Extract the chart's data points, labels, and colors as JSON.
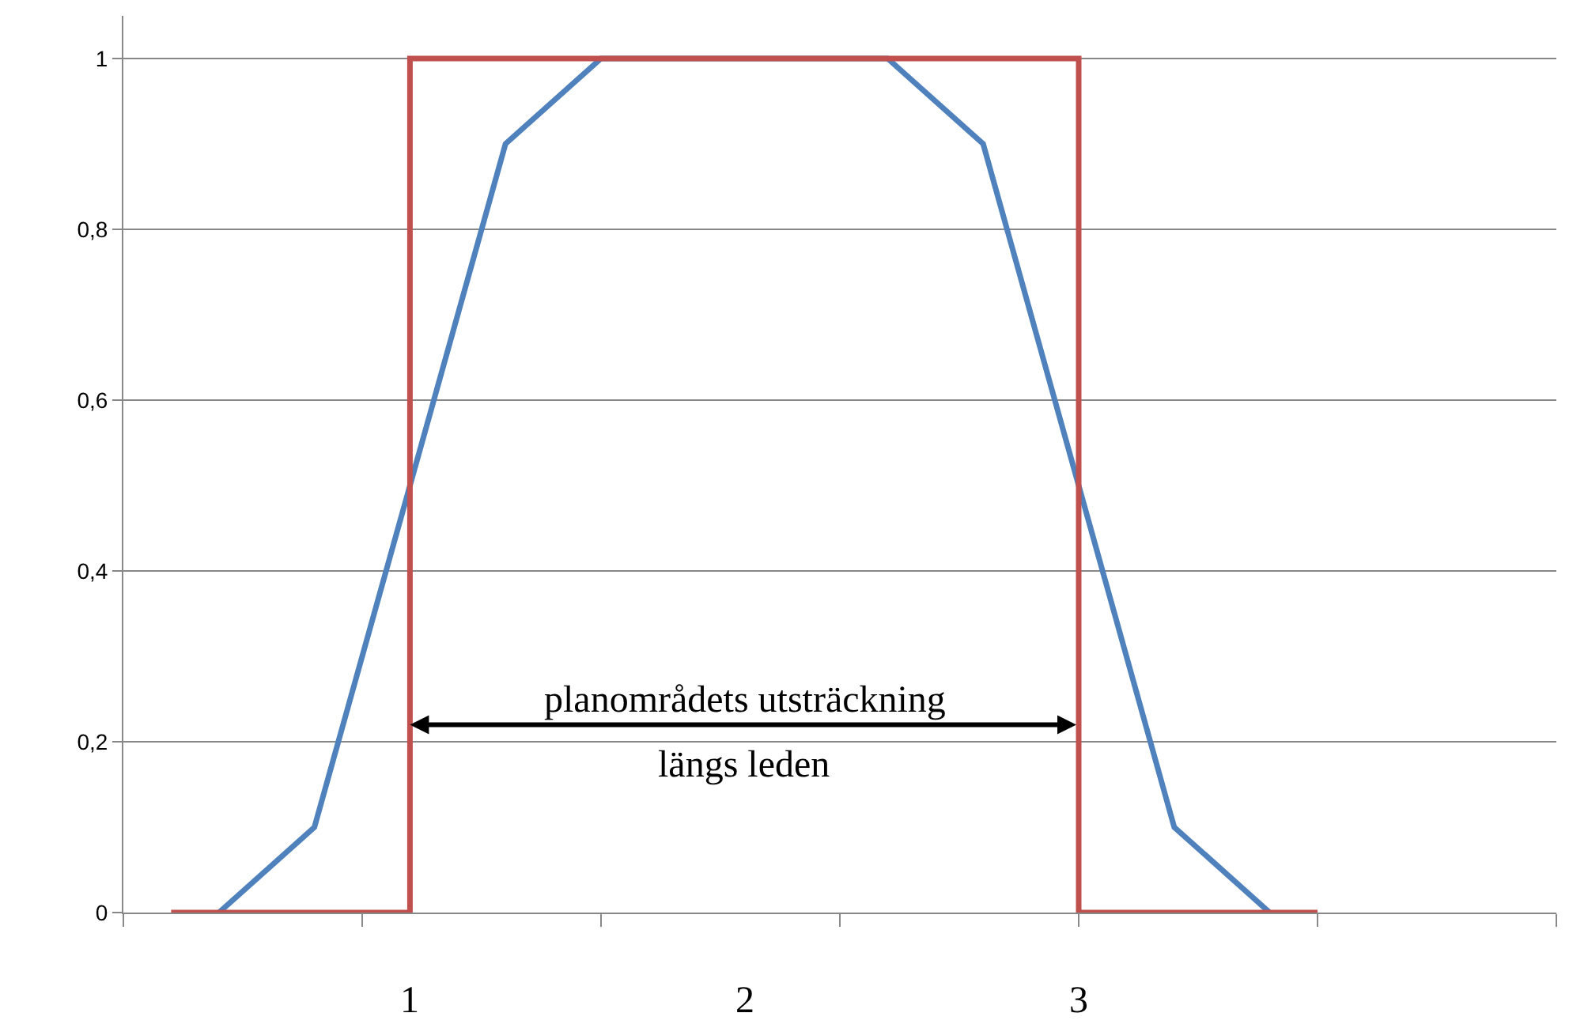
{
  "chart_data": {
    "type": "line",
    "categories": [
      null,
      null,
      null,
      null,
      null,
      null,
      null,
      null,
      null,
      null,
      null,
      null,
      null,
      null,
      null,
      null,
      null,
      null,
      null,
      null,
      null,
      null,
      null,
      null,
      null,
      null,
      null,
      null,
      null,
      null,
      null
    ],
    "series": [
      {
        "color": "#4f81bd",
        "values": [
          null,
          null,
          0,
          null,
          0.1,
          null,
          0.5,
          null,
          0.9,
          null,
          1,
          null,
          null,
          null,
          null,
          null,
          1,
          null,
          0.9,
          null,
          0.5,
          null,
          0.1,
          null,
          0,
          null,
          null,
          null,
          null,
          null,
          null
        ]
      },
      {
        "type": "step",
        "color": "#c0504d",
        "values": [
          null,
          0,
          0,
          0,
          0,
          0,
          1,
          1,
          1,
          1,
          1,
          1,
          1,
          1,
          1,
          1,
          1,
          1,
          1,
          1,
          0,
          0,
          0,
          0,
          0,
          0,
          null,
          null,
          null,
          null,
          null
        ]
      }
    ],
    "ylim": [
      0,
      1.05
    ],
    "yticks": [
      0,
      {
        "value": 0.2,
        "label": "0,2"
      },
      {
        "value": 0.4,
        "label": "0,4"
      },
      {
        "value": 0.6,
        "label": "0,6"
      },
      {
        "value": 0.8,
        "label": "0,8"
      },
      1
    ],
    "grid": "y",
    "marker": "none",
    "tick_labels": "y",
    "annotations": [
      "planområdets utsträckning\nlängs leden",
      "1",
      "2",
      "3"
    ]
  }
}
